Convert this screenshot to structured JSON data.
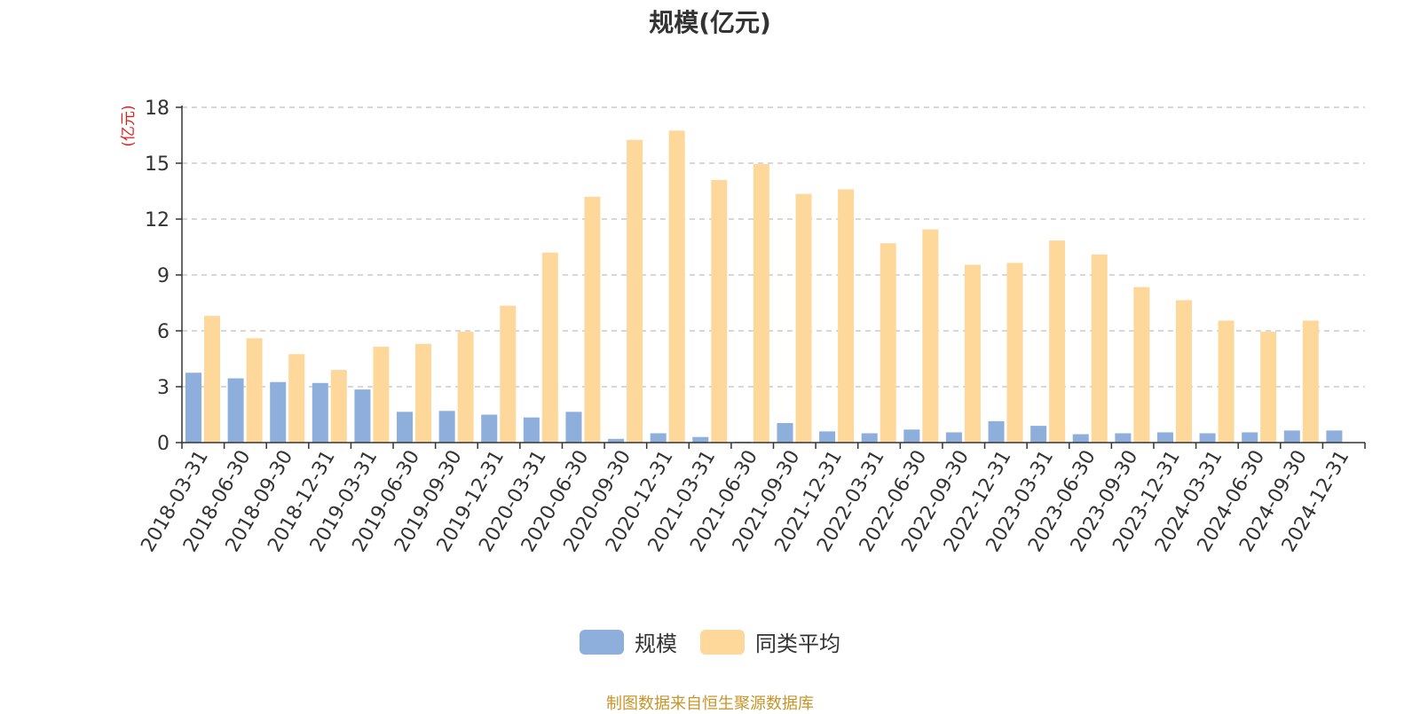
{
  "chart_data": {
    "type": "bar",
    "title": "规模(亿元)",
    "ylabel": "(亿元)",
    "ylim": [
      0,
      18
    ],
    "yticks": [
      0,
      3,
      6,
      9,
      12,
      15,
      18
    ],
    "grid": true,
    "legend_position": "bottom-center",
    "categories": [
      "2018-03-31",
      "2018-06-30",
      "2018-09-30",
      "2018-12-31",
      "2019-03-31",
      "2019-06-30",
      "2019-09-30",
      "2019-12-31",
      "2020-03-31",
      "2020-06-30",
      "2020-09-30",
      "2020-12-31",
      "2021-03-31",
      "2021-06-30",
      "2021-09-30",
      "2021-12-31",
      "2022-03-31",
      "2022-06-30",
      "2022-09-30",
      "2022-12-31",
      "2023-03-31",
      "2023-06-30",
      "2023-09-30",
      "2023-12-31",
      "2024-03-31",
      "2024-06-30",
      "2024-09-30",
      "2024-12-31"
    ],
    "series": [
      {
        "name": "规模",
        "color": "#8eaedc",
        "values": [
          3.75,
          3.45,
          3.25,
          3.2,
          2.85,
          1.65,
          1.7,
          1.5,
          1.35,
          1.65,
          0.2,
          0.5,
          0.3,
          0.05,
          1.05,
          0.6,
          0.5,
          0.7,
          0.55,
          1.15,
          0.9,
          0.45,
          0.5,
          0.55,
          0.5,
          0.55,
          0.65,
          0.65
        ]
      },
      {
        "name": "同类平均",
        "color": "#fdd89a",
        "values": [
          6.8,
          5.6,
          4.75,
          3.9,
          5.15,
          5.3,
          5.95,
          7.35,
          10.2,
          13.2,
          16.25,
          16.75,
          14.1,
          14.95,
          13.35,
          13.6,
          10.7,
          11.45,
          9.55,
          9.65,
          10.85,
          10.1,
          8.35,
          7.65,
          6.55,
          5.95,
          6.55,
          null
        ]
      }
    ]
  },
  "source_note": "制图数据来自恒生聚源数据库"
}
